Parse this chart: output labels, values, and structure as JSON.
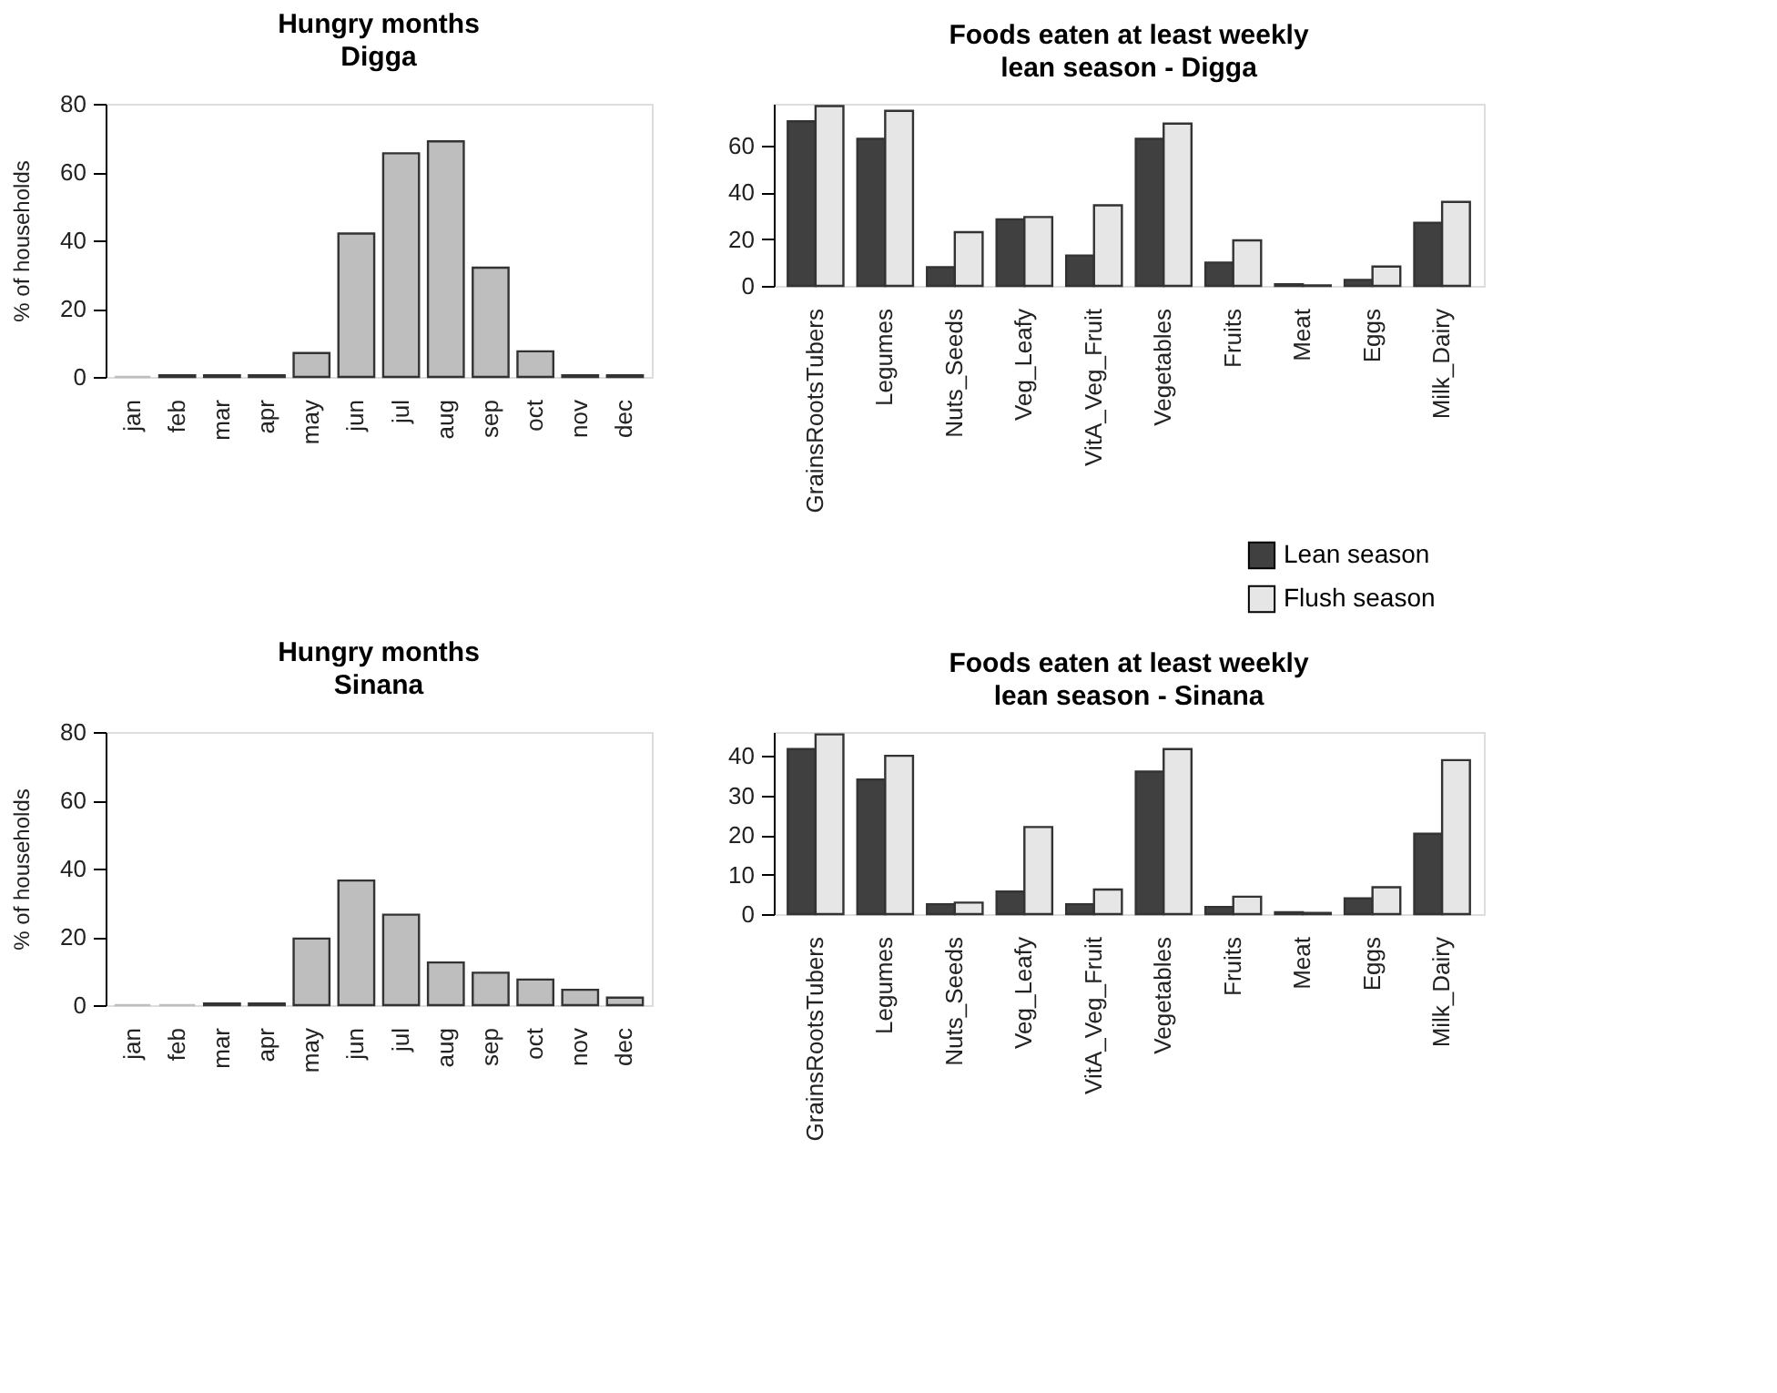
{
  "chart_data": [
    {
      "type": "bar",
      "title": "Hungry months",
      "subtitle": "Digga",
      "ylabel": "% of households",
      "categories": [
        "jan",
        "feb",
        "mar",
        "apr",
        "may",
        "jun",
        "jul",
        "aug",
        "sep",
        "oct",
        "nov",
        "dec"
      ],
      "values": [
        0,
        0.5,
        0.5,
        0.5,
        7,
        42,
        65.5,
        69,
        32,
        7.5,
        0.5,
        0.5
      ],
      "color": "#bebebe",
      "ylim": [
        0,
        80
      ],
      "yticks": [
        0,
        20,
        40,
        60,
        80
      ],
      "grid": false,
      "legend": false
    },
    {
      "type": "bar",
      "title": "Foods eaten at least weekly",
      "subtitle": "lean season - Digga",
      "categories": [
        "GrainsRootsTubers",
        "Legumes",
        "Nuts_Seeds",
        "Veg_Leafy",
        "VitA_Veg_Fruit",
        "Vegetables",
        "Fruits",
        "Meat",
        "Eggs",
        "Milk_Dairy"
      ],
      "series": [
        {
          "name": "Lean season",
          "color": "#404040",
          "values": [
            70.5,
            63,
            8,
            28.5,
            13,
            63,
            10,
            0.7,
            2.6,
            27
          ]
        },
        {
          "name": "Flush season",
          "color": "#e6e6e6",
          "values": [
            77,
            75,
            23,
            29.5,
            34.5,
            69.5,
            19.5,
            0.2,
            8.3,
            36
          ]
        }
      ],
      "ylim": [
        0,
        78
      ],
      "yticks": [
        0,
        20,
        40,
        60
      ],
      "grid": false,
      "legend": "bottom right"
    },
    {
      "type": "bar",
      "title": "Hungry months",
      "subtitle": "Sinana",
      "ylabel": "% of households",
      "categories": [
        "jan",
        "feb",
        "mar",
        "apr",
        "may",
        "jun",
        "jul",
        "aug",
        "sep",
        "oct",
        "nov",
        "dec"
      ],
      "values": [
        0,
        0,
        0.5,
        0.5,
        19.5,
        36.5,
        26.5,
        12.5,
        9.5,
        7.5,
        4.5,
        2.2
      ],
      "color": "#bebebe",
      "ylim": [
        0,
        80
      ],
      "yticks": [
        0,
        20,
        40,
        60,
        80
      ],
      "grid": false,
      "legend": false
    },
    {
      "type": "bar",
      "title": "Foods eaten at least weekly",
      "subtitle": "lean season - Sinana",
      "categories": [
        "GrainsRootsTubers",
        "Legumes",
        "Nuts_Seeds",
        "Veg_Leafy",
        "VitA_Veg_Fruit",
        "Vegetables",
        "Fruits",
        "Meat",
        "Eggs",
        "Milk_Dairy"
      ],
      "series": [
        {
          "color": "#404040",
          "values": [
            41.7,
            34,
            2.5,
            5.7,
            2.5,
            36,
            1.8,
            0.5,
            4,
            20.3
          ]
        },
        {
          "color": "#e6e6e6",
          "values": [
            45.4,
            40,
            2.9,
            22,
            6.2,
            41.7,
            4.4,
            0.3,
            6.8,
            38.9
          ]
        }
      ],
      "ylim": [
        0,
        46
      ],
      "yticks": [
        0,
        10,
        20,
        30,
        40
      ],
      "grid": false,
      "legend": false
    }
  ]
}
